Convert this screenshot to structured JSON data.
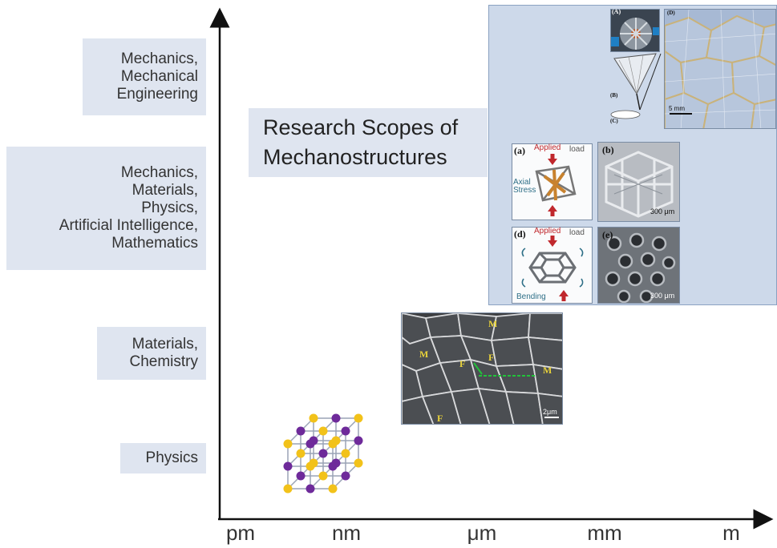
{
  "y_categories": [
    {
      "lines": [
        "Mechanics,",
        "Mechanical",
        "Engineering"
      ]
    },
    {
      "lines": [
        "Mechanics,",
        "Materials,",
        "Physics,",
        "Artificial Intelligence,",
        "Mathematics"
      ]
    },
    {
      "lines": [
        "Materials,",
        "Chemistry"
      ]
    },
    {
      "lines": [
        "Physics"
      ]
    }
  ],
  "x_ticks": [
    "pm",
    "nm",
    "μm",
    "mm",
    "m"
  ],
  "title": {
    "line1": "Research Scopes of",
    "line2": "Mechanostructures"
  },
  "panel": {
    "label_A": "(A)",
    "label_B": "(B)",
    "label_C": "(C)",
    "label_D": "(D)",
    "scale_D": "5 mm",
    "label_a": "(a)",
    "label_b": "(b)",
    "label_d": "(d)",
    "label_e": "(e)",
    "applied": "Applied",
    "load": "load",
    "axial_stress": "Axial Stress",
    "bending": "Bending",
    "scale_b": "300 μm",
    "scale_e": "300 μm"
  },
  "micrograph": {
    "label_M": "M",
    "label_F": "F",
    "scale": "2μm"
  },
  "colors": {
    "box_bg": "#dfe5f0",
    "panel_bg": "#cdd9ea",
    "atom_gold": "#f2c21a",
    "atom_purple": "#6e2a9a",
    "arrow_red": "#c0282d",
    "annot_teal": "#2e6f87"
  }
}
